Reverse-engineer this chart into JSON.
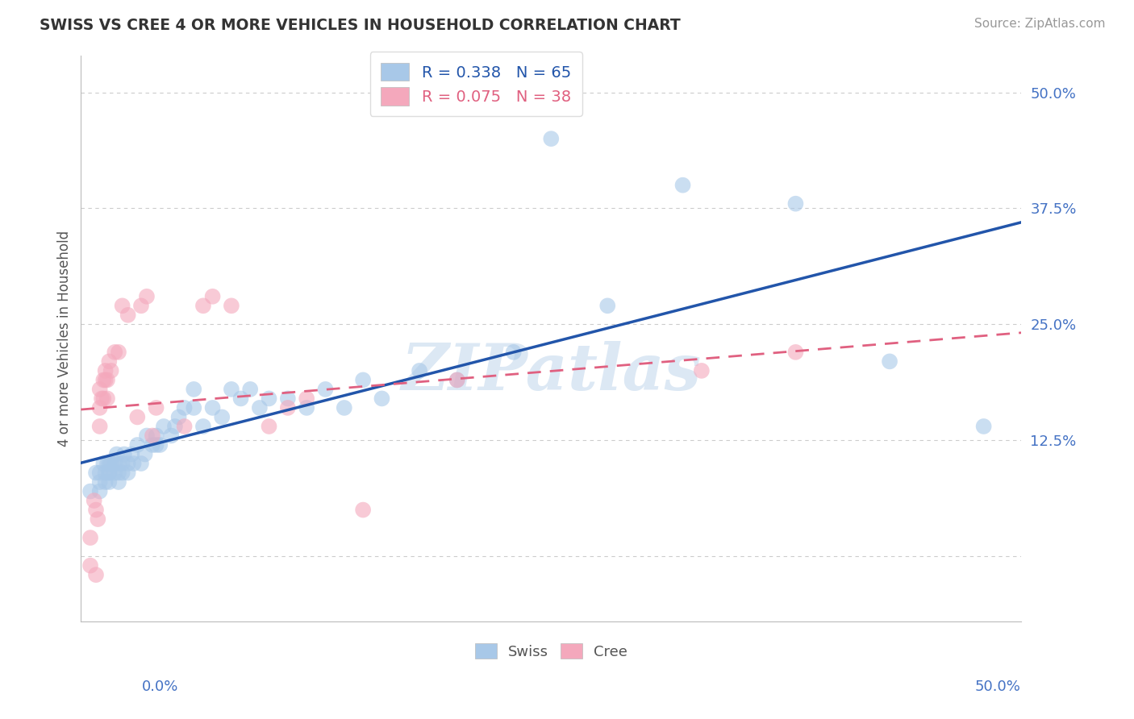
{
  "title": "SWISS VS CREE 4 OR MORE VEHICLES IN HOUSEHOLD CORRELATION CHART",
  "source": "Source: ZipAtlas.com",
  "ylabel": "4 or more Vehicles in Household",
  "ytick_labels": [
    "",
    "12.5%",
    "25.0%",
    "37.5%",
    "50.0%"
  ],
  "ytick_values": [
    0.0,
    0.125,
    0.25,
    0.375,
    0.5
  ],
  "xlim": [
    0.0,
    0.5
  ],
  "ylim": [
    -0.07,
    0.54
  ],
  "swiss_R": 0.338,
  "swiss_N": 65,
  "cree_R": 0.075,
  "cree_N": 38,
  "swiss_color": "#a8c8e8",
  "cree_color": "#f4a8bc",
  "swiss_line_color": "#2255aa",
  "cree_line_color": "#e06080",
  "background_color": "#ffffff",
  "watermark_color": "#dce8f4",
  "swiss_x": [
    0.005,
    0.008,
    0.01,
    0.01,
    0.01,
    0.012,
    0.013,
    0.013,
    0.014,
    0.015,
    0.015,
    0.015,
    0.015,
    0.016,
    0.018,
    0.018,
    0.019,
    0.02,
    0.02,
    0.02,
    0.022,
    0.022,
    0.023,
    0.025,
    0.025,
    0.027,
    0.028,
    0.03,
    0.032,
    0.034,
    0.035,
    0.038,
    0.04,
    0.04,
    0.042,
    0.044,
    0.048,
    0.05,
    0.052,
    0.055,
    0.06,
    0.06,
    0.065,
    0.07,
    0.075,
    0.08,
    0.085,
    0.09,
    0.095,
    0.1,
    0.11,
    0.12,
    0.13,
    0.14,
    0.15,
    0.16,
    0.18,
    0.2,
    0.23,
    0.25,
    0.28,
    0.32,
    0.38,
    0.43,
    0.48
  ],
  "swiss_y": [
    0.07,
    0.09,
    0.08,
    0.09,
    0.07,
    0.1,
    0.09,
    0.08,
    0.1,
    0.09,
    0.08,
    0.1,
    0.09,
    0.1,
    0.1,
    0.09,
    0.11,
    0.1,
    0.09,
    0.08,
    0.1,
    0.09,
    0.11,
    0.1,
    0.09,
    0.11,
    0.1,
    0.12,
    0.1,
    0.11,
    0.13,
    0.12,
    0.12,
    0.13,
    0.12,
    0.14,
    0.13,
    0.14,
    0.15,
    0.16,
    0.16,
    0.18,
    0.14,
    0.16,
    0.15,
    0.18,
    0.17,
    0.18,
    0.16,
    0.17,
    0.17,
    0.16,
    0.18,
    0.16,
    0.19,
    0.17,
    0.2,
    0.19,
    0.22,
    0.45,
    0.27,
    0.4,
    0.38,
    0.21,
    0.14
  ],
  "cree_x": [
    0.005,
    0.005,
    0.007,
    0.008,
    0.008,
    0.009,
    0.01,
    0.01,
    0.01,
    0.011,
    0.012,
    0.012,
    0.013,
    0.013,
    0.014,
    0.014,
    0.015,
    0.016,
    0.018,
    0.02,
    0.022,
    0.025,
    0.03,
    0.032,
    0.035,
    0.038,
    0.04,
    0.055,
    0.065,
    0.07,
    0.08,
    0.1,
    0.11,
    0.12,
    0.15,
    0.2,
    0.33,
    0.38
  ],
  "cree_y": [
    0.02,
    -0.01,
    0.06,
    0.05,
    -0.02,
    0.04,
    0.14,
    0.16,
    0.18,
    0.17,
    0.19,
    0.17,
    0.2,
    0.19,
    0.17,
    0.19,
    0.21,
    0.2,
    0.22,
    0.22,
    0.27,
    0.26,
    0.15,
    0.27,
    0.28,
    0.13,
    0.16,
    0.14,
    0.27,
    0.28,
    0.27,
    0.14,
    0.16,
    0.17,
    0.05,
    0.19,
    0.2,
    0.22
  ]
}
